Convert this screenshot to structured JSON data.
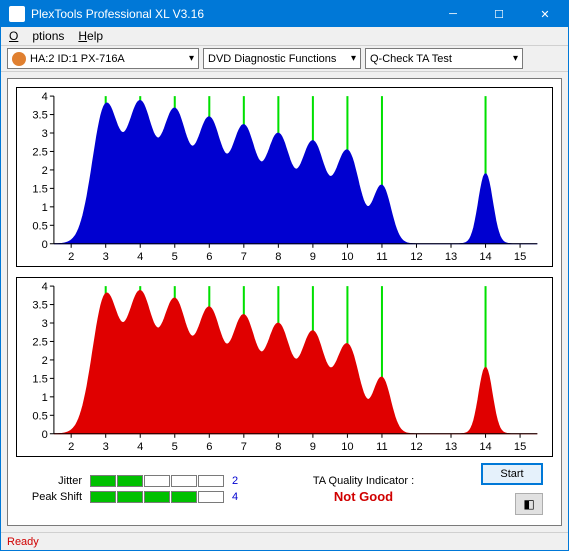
{
  "window": {
    "title": "PlexTools Professional XL V3.16"
  },
  "menu": {
    "options": "Options",
    "help": "Help"
  },
  "toolbar": {
    "drive": "HA:2 ID:1   PX-716A",
    "func": "DVD Diagnostic Functions",
    "test": "Q-Check TA Test"
  },
  "chart": {
    "y_ticks": [
      0,
      0.5,
      1,
      1.5,
      2,
      2.5,
      3,
      3.5,
      4
    ],
    "y_labels": [
      "0",
      "0.5",
      "1",
      "1.5",
      "2",
      "2.5",
      "3",
      "3.5",
      "4"
    ],
    "x_ticks": [
      2,
      3,
      4,
      5,
      6,
      7,
      8,
      9,
      10,
      11,
      12,
      13,
      14,
      15
    ],
    "x_labels": [
      "2",
      "3",
      "4",
      "5",
      "6",
      "7",
      "8",
      "9",
      "10",
      "11",
      "12",
      "13",
      "14",
      "15"
    ],
    "ymax": 4,
    "xmin": 1.5,
    "xmax": 15.5,
    "bg": "#ffffff",
    "axis_color": "#000000",
    "grid_color": "#cccccc",
    "marker_color": "#00e000",
    "fontsize": 11,
    "top": {
      "color": "#0000d0",
      "peaks": [
        {
          "x": 3,
          "h": 3.7,
          "w": 0.82
        },
        {
          "x": 4,
          "h": 3.7,
          "w": 0.82
        },
        {
          "x": 5,
          "h": 3.5,
          "w": 0.8
        },
        {
          "x": 6,
          "h": 3.3,
          "w": 0.8
        },
        {
          "x": 7,
          "h": 3.1,
          "w": 0.78
        },
        {
          "x": 8,
          "h": 2.9,
          "w": 0.78
        },
        {
          "x": 9,
          "h": 2.7,
          "w": 0.76
        },
        {
          "x": 10,
          "h": 2.5,
          "w": 0.76
        },
        {
          "x": 11,
          "h": 1.55,
          "w": 0.56
        },
        {
          "x": 14,
          "h": 1.9,
          "w": 0.44
        }
      ]
    },
    "bottom": {
      "color": "#e00000",
      "peaks": [
        {
          "x": 3,
          "h": 3.7,
          "w": 0.82
        },
        {
          "x": 4,
          "h": 3.7,
          "w": 0.82
        },
        {
          "x": 5,
          "h": 3.5,
          "w": 0.8
        },
        {
          "x": 6,
          "h": 3.3,
          "w": 0.8
        },
        {
          "x": 7,
          "h": 3.1,
          "w": 0.78
        },
        {
          "x": 8,
          "h": 2.9,
          "w": 0.78
        },
        {
          "x": 9,
          "h": 2.7,
          "w": 0.76
        },
        {
          "x": 10,
          "h": 2.4,
          "w": 0.76
        },
        {
          "x": 11,
          "h": 1.5,
          "w": 0.54
        },
        {
          "x": 14,
          "h": 1.8,
          "w": 0.42
        }
      ]
    }
  },
  "meters": {
    "jitter": {
      "label": "Jitter",
      "filled": 2,
      "total": 5,
      "value": "2"
    },
    "peak": {
      "label": "Peak Shift",
      "filled": 4,
      "total": 5,
      "value": "4"
    }
  },
  "quality": {
    "label": "TA Quality Indicator :",
    "value": "Not Good"
  },
  "buttons": {
    "start": "Start"
  },
  "status": "Ready"
}
